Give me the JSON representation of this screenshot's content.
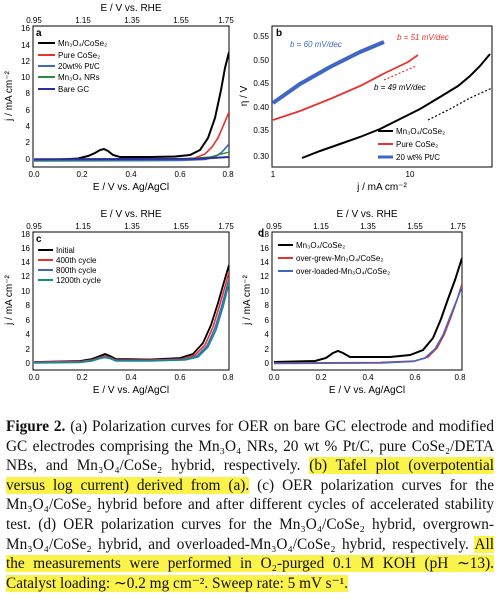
{
  "figure": {
    "panels": [
      {
        "letter": "a",
        "top_axis_label": "E / V vs. RHE",
        "top_ticks": [
          "0.95",
          "1.15",
          "1.35",
          "1.55",
          "1.75"
        ],
        "xlabel": "E / V vs. Ag/AgCl",
        "ylabel": "j / mA cm⁻²",
        "x_ticks": [
          "0.0",
          "0.2",
          "0.4",
          "0.6",
          "0.8"
        ],
        "y_ticks": [
          "0",
          "2",
          "4",
          "6",
          "8",
          "10",
          "12",
          "14",
          "16"
        ],
        "legend": [
          "Mn₃O₄/CoSe₂",
          "Pure CoSe₂",
          "20wt% Pt/C",
          "Mn₃O₄ NRs",
          "Bare GC"
        ]
      },
      {
        "letter": "b",
        "xlabel": "j / mA cm⁻²",
        "ylabel": "η / V",
        "x_ticks": [
          "1",
          "10"
        ],
        "y_ticks": [
          "0.30",
          "0.35",
          "0.40",
          "0.45",
          "0.50",
          "0.55"
        ],
        "legend": [
          "Mn₃O₄/CoSe₂",
          "Pure CoSe₂",
          "20 wt% Pt/C"
        ],
        "annotations": [
          "b = 60 mV/dec",
          "b = 51 mV/dec",
          "b = 49 mV/dec"
        ]
      },
      {
        "letter": "c",
        "top_axis_label": "E / V vs. RHE",
        "top_ticks": [
          "0.95",
          "1.15",
          "1.35",
          "1.55",
          "1.75"
        ],
        "xlabel": "E / V vs. Ag/AgCl",
        "ylabel": "j / mA cm⁻²",
        "x_ticks": [
          "0.0",
          "0.2",
          "0.4",
          "0.6",
          "0.8"
        ],
        "y_ticks": [
          "0",
          "2",
          "4",
          "6",
          "8",
          "10",
          "12",
          "14",
          "16",
          "18"
        ],
        "legend": [
          "Initial",
          "400th cycle",
          "800th cycle",
          "1200th cycle"
        ]
      },
      {
        "letter": "d",
        "top_axis_label": "E / V vs. RHE",
        "top_ticks": [
          "0.95",
          "1.15",
          "1.35",
          "1.55",
          "1.75"
        ],
        "xlabel": "E / V vs. Ag/AgCl",
        "ylabel": "j / mA cm⁻²",
        "x_ticks": [
          "0.0",
          "0.2",
          "0.4",
          "0.6",
          "0.8"
        ],
        "y_ticks": [
          "0",
          "2",
          "4",
          "6",
          "8",
          "10",
          "12",
          "14",
          "16",
          "18"
        ],
        "legend": [
          "Mn₃O₄/CoSe₂",
          "over-grew-Mn₃O₄/CoSe₂",
          "over-loaded-Mn₃O₄/CoSe₂"
        ]
      }
    ]
  },
  "caption": {
    "label": "Figure 2.",
    "part1": " (a) Polarization curves for OER on bare GC electrode and modified GC electrodes comprising the Mn₃O₄ NRs, 20 wt % Pt/C, pure CoSe₂/DETA NBs, and Mn₃O₄/CoSe₂ hybrid, respectively. ",
    "highlight1": "(b) Tafel plot (overpotential versus log current) derived from (a).",
    "part2": " (c) OER polarization curves for the Mn₃O₄/CoSe₂ hybrid before and after different cycles of accelerated stability test. (d) OER polarization curves for the Mn₃O₄/CoSe₂ hybrid, overgrown-Mn₃O₄/CoSe₂ hybrid, and overloaded-Mn₃O₄/CoSe₂ hybrid, respectively. ",
    "highlight2": "All the measurements were performed in O₂-purged 0.1 M KOH (pH ∼13). Catalyst loading: ∼0.2 mg cm⁻². Sweep rate: 5 mV s⁻¹."
  },
  "colors": {
    "black": "#000000",
    "red": "#e8332d",
    "blue": "#3f66c4",
    "green": "#2e8b3b",
    "teal": "#1a8a8a",
    "navy": "#2b2f9c",
    "highlight": "#fbf34a"
  }
}
